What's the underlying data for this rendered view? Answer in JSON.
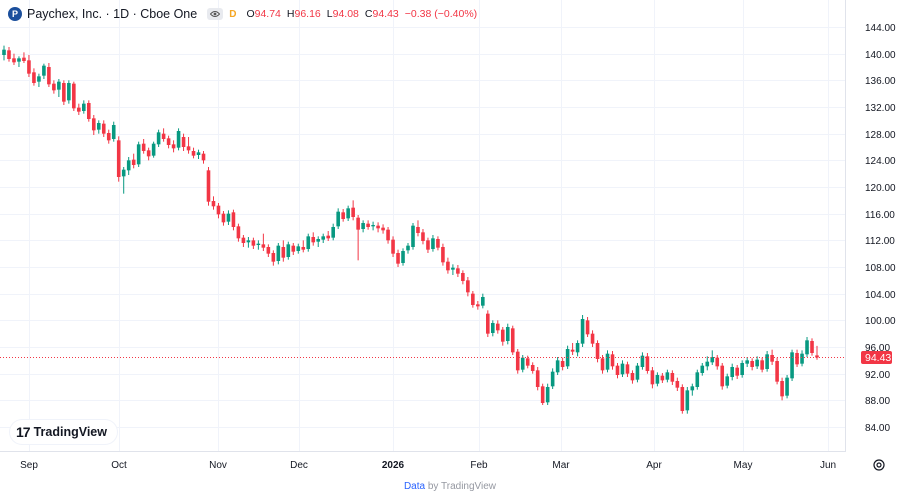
{
  "legend": {
    "logo_letter": "P",
    "title": "Paychex, Inc. · 1D · Cboe One",
    "flag": "D",
    "o_label": "O",
    "o_value": "94.74",
    "h_label": "H",
    "h_value": "96.16",
    "l_label": "L",
    "l_value": "94.08",
    "c_label": "C",
    "c_value": "94.43",
    "change": "−0.38 (−0.40%)"
  },
  "branding": {
    "logo_mark": "17",
    "logo_text": "TradingView"
  },
  "footer": {
    "data_text": "Data",
    "by_text": "by TradingView"
  },
  "icons": {
    "settings": "gear-icon",
    "eye": "eye-icon"
  },
  "colors": {
    "up": "#089981",
    "down": "#f23645",
    "last_price": "#f23645"
  },
  "chart_data": {
    "type": "candlestick",
    "y_axis": {
      "ticks": [
        84,
        88,
        92,
        96,
        100,
        104,
        108,
        112,
        116,
        120,
        124,
        128,
        132,
        136,
        140,
        144
      ],
      "ylim": [
        82,
        146
      ]
    },
    "x_axis": {
      "labels": [
        "Sep",
        "Oct",
        "Nov",
        "Dec",
        "2026",
        "Feb",
        "Mar",
        "Apr",
        "May",
        "Jun"
      ]
    },
    "last_price": 94.43,
    "last_price_label": "94.43",
    "candles": [
      {
        "o": 139.8,
        "h": 141.2,
        "l": 139.0,
        "c": 140.6
      },
      {
        "o": 140.5,
        "h": 141.0,
        "l": 138.8,
        "c": 139.2
      },
      {
        "o": 139.3,
        "h": 140.0,
        "l": 138.3,
        "c": 138.7
      },
      {
        "o": 138.8,
        "h": 139.6,
        "l": 138.0,
        "c": 139.3
      },
      {
        "o": 139.4,
        "h": 140.2,
        "l": 138.6,
        "c": 138.9
      },
      {
        "o": 139.0,
        "h": 139.8,
        "l": 136.5,
        "c": 137.0
      },
      {
        "o": 137.2,
        "h": 137.8,
        "l": 135.2,
        "c": 135.6
      },
      {
        "o": 135.8,
        "h": 137.0,
        "l": 135.0,
        "c": 136.6
      },
      {
        "o": 136.7,
        "h": 138.5,
        "l": 136.2,
        "c": 138.2
      },
      {
        "o": 138.0,
        "h": 138.6,
        "l": 135.0,
        "c": 135.4
      },
      {
        "o": 135.5,
        "h": 136.0,
        "l": 134.0,
        "c": 134.5
      },
      {
        "o": 134.6,
        "h": 136.2,
        "l": 133.5,
        "c": 135.8
      },
      {
        "o": 135.6,
        "h": 136.0,
        "l": 132.3,
        "c": 132.8
      },
      {
        "o": 133.0,
        "h": 136.0,
        "l": 132.5,
        "c": 135.6
      },
      {
        "o": 135.5,
        "h": 135.8,
        "l": 131.4,
        "c": 131.8
      },
      {
        "o": 131.9,
        "h": 132.5,
        "l": 130.8,
        "c": 131.3
      },
      {
        "o": 131.4,
        "h": 133.0,
        "l": 131.0,
        "c": 132.5
      },
      {
        "o": 132.6,
        "h": 133.0,
        "l": 129.8,
        "c": 130.2
      },
      {
        "o": 130.3,
        "h": 130.8,
        "l": 127.8,
        "c": 128.5
      },
      {
        "o": 128.6,
        "h": 130.0,
        "l": 128.0,
        "c": 129.6
      },
      {
        "o": 129.5,
        "h": 130.0,
        "l": 127.5,
        "c": 128.0
      },
      {
        "o": 128.1,
        "h": 128.6,
        "l": 126.5,
        "c": 127.0
      },
      {
        "o": 127.2,
        "h": 129.8,
        "l": 126.8,
        "c": 129.3
      },
      {
        "o": 127.0,
        "h": 127.6,
        "l": 120.8,
        "c": 121.5
      },
      {
        "o": 121.6,
        "h": 123.0,
        "l": 119.0,
        "c": 122.6
      },
      {
        "o": 122.5,
        "h": 124.5,
        "l": 121.8,
        "c": 124.0
      },
      {
        "o": 124.1,
        "h": 125.0,
        "l": 122.8,
        "c": 123.3
      },
      {
        "o": 123.4,
        "h": 126.8,
        "l": 123.0,
        "c": 126.4
      },
      {
        "o": 126.5,
        "h": 127.2,
        "l": 125.0,
        "c": 125.4
      },
      {
        "o": 125.5,
        "h": 125.9,
        "l": 124.0,
        "c": 124.6
      },
      {
        "o": 124.7,
        "h": 126.8,
        "l": 124.4,
        "c": 126.5
      },
      {
        "o": 126.4,
        "h": 128.6,
        "l": 126.0,
        "c": 128.2
      },
      {
        "o": 128.0,
        "h": 128.8,
        "l": 126.8,
        "c": 127.2
      },
      {
        "o": 127.3,
        "h": 127.7,
        "l": 125.8,
        "c": 126.3
      },
      {
        "o": 126.4,
        "h": 127.0,
        "l": 125.2,
        "c": 125.8
      },
      {
        "o": 125.9,
        "h": 128.8,
        "l": 125.5,
        "c": 128.4
      },
      {
        "o": 127.5,
        "h": 128.0,
        "l": 125.4,
        "c": 126.0
      },
      {
        "o": 126.1,
        "h": 127.5,
        "l": 125.0,
        "c": 125.5
      },
      {
        "o": 125.4,
        "h": 125.9,
        "l": 124.3,
        "c": 124.7
      },
      {
        "o": 124.8,
        "h": 125.6,
        "l": 124.2,
        "c": 125.2
      },
      {
        "o": 125.0,
        "h": 125.4,
        "l": 123.5,
        "c": 124.0
      },
      {
        "o": 122.5,
        "h": 123.0,
        "l": 117.2,
        "c": 117.8
      },
      {
        "o": 117.9,
        "h": 118.6,
        "l": 116.6,
        "c": 117.1
      },
      {
        "o": 117.2,
        "h": 117.6,
        "l": 115.3,
        "c": 115.9
      },
      {
        "o": 116.0,
        "h": 116.4,
        "l": 114.2,
        "c": 114.7
      },
      {
        "o": 114.8,
        "h": 116.5,
        "l": 114.3,
        "c": 116.0
      },
      {
        "o": 116.2,
        "h": 116.6,
        "l": 113.5,
        "c": 114.0
      },
      {
        "o": 114.1,
        "h": 114.5,
        "l": 111.8,
        "c": 112.3
      },
      {
        "o": 112.4,
        "h": 112.8,
        "l": 111.0,
        "c": 111.6
      },
      {
        "o": 111.7,
        "h": 112.5,
        "l": 110.9,
        "c": 112.0
      },
      {
        "o": 112.0,
        "h": 112.4,
        "l": 110.7,
        "c": 111.2
      },
      {
        "o": 111.3,
        "h": 112.0,
        "l": 110.6,
        "c": 111.5
      },
      {
        "o": 111.4,
        "h": 113.0,
        "l": 110.4,
        "c": 110.9
      },
      {
        "o": 111.0,
        "h": 111.4,
        "l": 109.5,
        "c": 110.0
      },
      {
        "o": 110.1,
        "h": 110.5,
        "l": 108.2,
        "c": 108.8
      },
      {
        "o": 108.9,
        "h": 111.6,
        "l": 108.4,
        "c": 111.2
      },
      {
        "o": 111.0,
        "h": 112.0,
        "l": 108.8,
        "c": 109.4
      },
      {
        "o": 109.5,
        "h": 111.8,
        "l": 109.1,
        "c": 111.4
      },
      {
        "o": 111.2,
        "h": 111.6,
        "l": 109.8,
        "c": 110.3
      },
      {
        "o": 110.4,
        "h": 111.5,
        "l": 110.0,
        "c": 111.1
      },
      {
        "o": 111.0,
        "h": 112.0,
        "l": 110.2,
        "c": 110.6
      },
      {
        "o": 110.7,
        "h": 113.0,
        "l": 110.3,
        "c": 112.6
      },
      {
        "o": 112.5,
        "h": 113.2,
        "l": 111.2,
        "c": 111.7
      },
      {
        "o": 111.8,
        "h": 112.6,
        "l": 111.0,
        "c": 112.2
      },
      {
        "o": 112.1,
        "h": 113.0,
        "l": 111.6,
        "c": 112.6
      },
      {
        "o": 112.7,
        "h": 113.4,
        "l": 111.9,
        "c": 112.3
      },
      {
        "o": 112.4,
        "h": 114.5,
        "l": 112.0,
        "c": 114.0
      },
      {
        "o": 114.1,
        "h": 116.8,
        "l": 113.7,
        "c": 116.3
      },
      {
        "o": 116.2,
        "h": 116.7,
        "l": 114.8,
        "c": 115.2
      },
      {
        "o": 115.3,
        "h": 117.2,
        "l": 114.9,
        "c": 116.8
      },
      {
        "o": 116.9,
        "h": 118.0,
        "l": 115.0,
        "c": 115.5
      },
      {
        "o": 115.4,
        "h": 115.8,
        "l": 109.0,
        "c": 113.6
      },
      {
        "o": 113.7,
        "h": 115.0,
        "l": 113.2,
        "c": 114.6
      },
      {
        "o": 114.5,
        "h": 115.0,
        "l": 113.6,
        "c": 114.0
      },
      {
        "o": 114.1,
        "h": 114.8,
        "l": 113.5,
        "c": 114.3
      },
      {
        "o": 114.2,
        "h": 114.7,
        "l": 113.2,
        "c": 113.8
      },
      {
        "o": 113.9,
        "h": 114.4,
        "l": 113.0,
        "c": 113.5
      },
      {
        "o": 113.6,
        "h": 114.0,
        "l": 111.5,
        "c": 112.0
      },
      {
        "o": 112.1,
        "h": 112.6,
        "l": 109.5,
        "c": 110.0
      },
      {
        "o": 110.1,
        "h": 110.6,
        "l": 108.0,
        "c": 108.5
      },
      {
        "o": 108.6,
        "h": 110.8,
        "l": 108.2,
        "c": 110.4
      },
      {
        "o": 110.5,
        "h": 111.6,
        "l": 110.0,
        "c": 111.2
      },
      {
        "o": 111.0,
        "h": 114.6,
        "l": 110.6,
        "c": 114.2
      },
      {
        "o": 114.0,
        "h": 115.0,
        "l": 112.6,
        "c": 113.1
      },
      {
        "o": 113.2,
        "h": 113.7,
        "l": 111.4,
        "c": 111.9
      },
      {
        "o": 112.0,
        "h": 112.4,
        "l": 110.1,
        "c": 110.6
      },
      {
        "o": 110.7,
        "h": 112.8,
        "l": 110.3,
        "c": 112.3
      },
      {
        "o": 112.2,
        "h": 112.6,
        "l": 110.5,
        "c": 110.9
      },
      {
        "o": 111.0,
        "h": 111.5,
        "l": 108.2,
        "c": 108.7
      },
      {
        "o": 108.8,
        "h": 109.4,
        "l": 107.0,
        "c": 107.5
      },
      {
        "o": 107.6,
        "h": 108.4,
        "l": 106.8,
        "c": 107.9
      },
      {
        "o": 107.8,
        "h": 108.3,
        "l": 106.5,
        "c": 107.0
      },
      {
        "o": 107.1,
        "h": 107.5,
        "l": 105.4,
        "c": 105.9
      },
      {
        "o": 106.0,
        "h": 106.5,
        "l": 103.6,
        "c": 104.2
      },
      {
        "o": 104.0,
        "h": 104.4,
        "l": 101.9,
        "c": 102.3
      },
      {
        "o": 102.4,
        "h": 102.9,
        "l": 101.6,
        "c": 102.1
      },
      {
        "o": 102.2,
        "h": 104.0,
        "l": 101.8,
        "c": 103.5
      },
      {
        "o": 101.0,
        "h": 101.5,
        "l": 97.5,
        "c": 98.0
      },
      {
        "o": 98.1,
        "h": 100.0,
        "l": 97.6,
        "c": 99.6
      },
      {
        "o": 99.5,
        "h": 100.0,
        "l": 98.0,
        "c": 98.5
      },
      {
        "o": 98.6,
        "h": 99.0,
        "l": 96.2,
        "c": 96.8
      },
      {
        "o": 96.9,
        "h": 99.5,
        "l": 96.4,
        "c": 99.0
      },
      {
        "o": 98.8,
        "h": 99.2,
        "l": 94.8,
        "c": 95.2
      },
      {
        "o": 95.3,
        "h": 95.7,
        "l": 92.0,
        "c": 92.5
      },
      {
        "o": 92.6,
        "h": 94.8,
        "l": 92.2,
        "c": 94.4
      },
      {
        "o": 94.3,
        "h": 94.7,
        "l": 92.8,
        "c": 93.2
      },
      {
        "o": 93.3,
        "h": 93.7,
        "l": 92.0,
        "c": 92.4
      },
      {
        "o": 92.5,
        "h": 93.0,
        "l": 89.5,
        "c": 90.0
      },
      {
        "o": 90.1,
        "h": 90.5,
        "l": 87.3,
        "c": 87.6
      },
      {
        "o": 87.7,
        "h": 90.5,
        "l": 87.3,
        "c": 90.0
      },
      {
        "o": 90.1,
        "h": 92.8,
        "l": 89.7,
        "c": 92.3
      },
      {
        "o": 92.2,
        "h": 94.5,
        "l": 91.8,
        "c": 94.0
      },
      {
        "o": 93.9,
        "h": 94.4,
        "l": 92.5,
        "c": 93.0
      },
      {
        "o": 93.1,
        "h": 96.2,
        "l": 92.7,
        "c": 95.7
      },
      {
        "o": 95.6,
        "h": 96.6,
        "l": 94.8,
        "c": 95.3
      },
      {
        "o": 95.2,
        "h": 97.0,
        "l": 94.6,
        "c": 96.6
      },
      {
        "o": 96.5,
        "h": 100.8,
        "l": 96.0,
        "c": 100.2
      },
      {
        "o": 100.0,
        "h": 100.5,
        "l": 97.5,
        "c": 97.9
      },
      {
        "o": 98.0,
        "h": 98.5,
        "l": 96.0,
        "c": 96.5
      },
      {
        "o": 96.6,
        "h": 97.0,
        "l": 93.7,
        "c": 94.2
      },
      {
        "o": 94.3,
        "h": 94.8,
        "l": 92.0,
        "c": 92.5
      },
      {
        "o": 92.6,
        "h": 95.5,
        "l": 92.2,
        "c": 95.0
      },
      {
        "o": 94.9,
        "h": 95.4,
        "l": 92.6,
        "c": 93.1
      },
      {
        "o": 93.2,
        "h": 93.6,
        "l": 91.3,
        "c": 91.8
      },
      {
        "o": 91.9,
        "h": 94.0,
        "l": 91.5,
        "c": 93.5
      },
      {
        "o": 93.4,
        "h": 93.8,
        "l": 91.5,
        "c": 92.0
      },
      {
        "o": 92.1,
        "h": 92.5,
        "l": 90.5,
        "c": 91.0
      },
      {
        "o": 91.1,
        "h": 93.6,
        "l": 90.7,
        "c": 93.2
      },
      {
        "o": 93.0,
        "h": 95.2,
        "l": 92.6,
        "c": 94.7
      },
      {
        "o": 94.6,
        "h": 95.1,
        "l": 92.0,
        "c": 92.4
      },
      {
        "o": 92.5,
        "h": 93.0,
        "l": 89.8,
        "c": 90.4
      },
      {
        "o": 90.5,
        "h": 92.2,
        "l": 90.1,
        "c": 91.8
      },
      {
        "o": 91.7,
        "h": 92.1,
        "l": 90.6,
        "c": 91.0
      },
      {
        "o": 91.1,
        "h": 92.6,
        "l": 90.7,
        "c": 92.2
      },
      {
        "o": 92.1,
        "h": 92.5,
        "l": 90.3,
        "c": 90.8
      },
      {
        "o": 90.9,
        "h": 91.4,
        "l": 89.4,
        "c": 89.9
      },
      {
        "o": 90.0,
        "h": 90.4,
        "l": 86.0,
        "c": 86.4
      },
      {
        "o": 86.5,
        "h": 90.0,
        "l": 86.0,
        "c": 89.5
      },
      {
        "o": 89.5,
        "h": 90.5,
        "l": 88.7,
        "c": 90.1
      },
      {
        "o": 90.0,
        "h": 92.6,
        "l": 89.6,
        "c": 92.2
      },
      {
        "o": 92.1,
        "h": 93.6,
        "l": 91.7,
        "c": 93.2
      },
      {
        "o": 93.1,
        "h": 94.6,
        "l": 92.5,
        "c": 93.8
      },
      {
        "o": 93.7,
        "h": 95.5,
        "l": 93.3,
        "c": 94.5
      },
      {
        "o": 94.4,
        "h": 94.8,
        "l": 92.6,
        "c": 93.1
      },
      {
        "o": 93.2,
        "h": 93.6,
        "l": 89.6,
        "c": 90.1
      },
      {
        "o": 90.2,
        "h": 92.0,
        "l": 89.8,
        "c": 91.6
      },
      {
        "o": 91.5,
        "h": 93.5,
        "l": 91.0,
        "c": 93.0
      },
      {
        "o": 92.9,
        "h": 93.3,
        "l": 91.2,
        "c": 91.7
      },
      {
        "o": 91.8,
        "h": 94.0,
        "l": 91.4,
        "c": 93.6
      },
      {
        "o": 93.5,
        "h": 94.5,
        "l": 93.0,
        "c": 94.0
      },
      {
        "o": 93.9,
        "h": 94.3,
        "l": 92.5,
        "c": 93.0
      },
      {
        "o": 93.1,
        "h": 94.6,
        "l": 92.7,
        "c": 94.1
      },
      {
        "o": 94.0,
        "h": 94.4,
        "l": 92.2,
        "c": 92.6
      },
      {
        "o": 92.7,
        "h": 95.4,
        "l": 92.3,
        "c": 94.9
      },
      {
        "o": 94.8,
        "h": 95.6,
        "l": 93.3,
        "c": 93.8
      },
      {
        "o": 93.9,
        "h": 94.4,
        "l": 90.4,
        "c": 90.8
      },
      {
        "o": 90.9,
        "h": 91.4,
        "l": 88.0,
        "c": 88.6
      },
      {
        "o": 88.7,
        "h": 91.8,
        "l": 88.3,
        "c": 91.4
      },
      {
        "o": 91.3,
        "h": 95.6,
        "l": 90.9,
        "c": 95.2
      },
      {
        "o": 95.1,
        "h": 95.6,
        "l": 93.0,
        "c": 93.4
      },
      {
        "o": 93.5,
        "h": 95.5,
        "l": 93.1,
        "c": 95.0
      },
      {
        "o": 94.9,
        "h": 97.5,
        "l": 94.5,
        "c": 97.0
      },
      {
        "o": 96.9,
        "h": 97.3,
        "l": 94.7,
        "c": 95.1
      },
      {
        "o": 94.74,
        "h": 96.16,
        "l": 94.08,
        "c": 94.43
      }
    ]
  }
}
